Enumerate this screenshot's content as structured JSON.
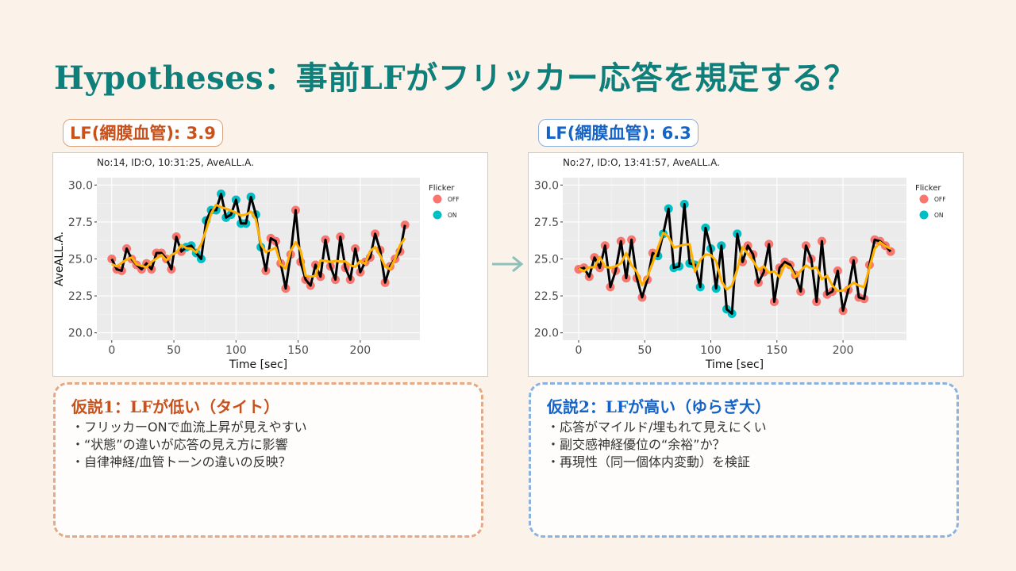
{
  "slide": {
    "title": "Hypotheses：事前LFがフリッカー応答を規定する？"
  },
  "colors": {
    "title": "#0f7f7c",
    "off": "#f8766d",
    "on": "#00bfc4",
    "raw_line": "#000000",
    "smooth_line": "#ffb000",
    "hyp1": "#c8501a",
    "hyp2": "#1463c8"
  },
  "panels": [
    {
      "badge": "LF(網膜血管): 3.9",
      "hypothesis": {
        "heading": "仮説1：LFが低い（タイト）",
        "bullets": [
          "フリッカーONで血流上昇が見えやすい",
          "“状態”の違いが応答の見え方に影響",
          "自律神経/血管トーンの違いの反映？"
        ]
      }
    },
    {
      "badge": "LF(網膜血管): 6.3",
      "hypothesis": {
        "heading": "仮説2：LFが高い（ゆらぎ大）",
        "bullets": [
          "応答がマイルド/埋もれて見えにくい",
          "副交感神経優位の“余裕”か？",
          "再現性（同一個体内変動）を検証"
        ]
      }
    }
  ],
  "chart_data": [
    {
      "type": "line",
      "title": "No:14, ID:O, 10:31:25, AveALL.A.",
      "xlabel": "Time [sec]",
      "ylabel": "AveALL.A.",
      "xticks": [
        "0",
        "50",
        "100",
        "150",
        "200"
      ],
      "yticks": [
        "20.0",
        "22.5",
        "25.0",
        "27.5",
        "30.0"
      ],
      "xlim": [
        -12,
        248
      ],
      "ylim": [
        19.5,
        30.5
      ],
      "grid": true,
      "legend": {
        "title": "Flicker",
        "entries": [
          "OFF",
          "ON"
        ],
        "position": "right"
      },
      "x": [
        0,
        4,
        8,
        12,
        16,
        20,
        24,
        28,
        32,
        36,
        40,
        44,
        48,
        52,
        56,
        60,
        64,
        68,
        72,
        76,
        80,
        84,
        88,
        92,
        96,
        100,
        104,
        108,
        112,
        116,
        120,
        124,
        128,
        132,
        136,
        140,
        144,
        148,
        152,
        156,
        160,
        164,
        168,
        172,
        176,
        180,
        184,
        188,
        192,
        196,
        200,
        204,
        208,
        212,
        216,
        220,
        224,
        228,
        232,
        236
      ],
      "y": [
        25.0,
        24.3,
        24.2,
        25.7,
        25.0,
        24.6,
        24.3,
        24.7,
        24.3,
        25.4,
        25.4,
        25.0,
        24.3,
        26.5,
        25.5,
        25.8,
        25.9,
        25.4,
        25.0,
        27.6,
        28.3,
        28.3,
        29.4,
        27.8,
        28.0,
        29.0,
        27.4,
        27.4,
        29.2,
        28.0,
        25.8,
        24.2,
        26.4,
        26.2,
        24.7,
        23.0,
        25.3,
        28.3,
        24.8,
        23.6,
        23.2,
        24.6,
        23.8,
        26.3,
        24.5,
        23.6,
        26.5,
        24.4,
        23.6,
        25.7,
        24.1,
        24.8,
        25.1,
        26.7,
        25.6,
        23.4,
        24.5,
        25.0,
        25.5,
        27.3
      ],
      "flicker": [
        "OFF",
        "OFF",
        "OFF",
        "OFF",
        "OFF",
        "OFF",
        "OFF",
        "OFF",
        "OFF",
        "OFF",
        "OFF",
        "OFF",
        "OFF",
        "OFF",
        "OFF",
        "ON",
        "ON",
        "ON",
        "ON",
        "ON",
        "ON",
        "ON",
        "ON",
        "ON",
        "ON",
        "ON",
        "ON",
        "ON",
        "ON",
        "ON",
        "ON",
        "OFF",
        "OFF",
        "OFF",
        "OFF",
        "OFF",
        "OFF",
        "OFF",
        "OFF",
        "OFF",
        "OFF",
        "OFF",
        "OFF",
        "OFF",
        "OFF",
        "OFF",
        "OFF",
        "OFF",
        "OFF",
        "OFF",
        "OFF",
        "OFF",
        "OFF",
        "OFF",
        "OFF",
        "OFF",
        "OFF",
        "OFF",
        "OFF",
        "OFF"
      ]
    },
    {
      "type": "line",
      "title": "No:27, ID:O, 13:41:57, AveALL.A.",
      "xlabel": "Time [sec]",
      "ylabel": "",
      "xticks": [
        "0",
        "50",
        "100",
        "150",
        "200"
      ],
      "yticks": [
        "20.0",
        "22.5",
        "25.0",
        "27.5",
        "30.0"
      ],
      "xlim": [
        -12,
        248
      ],
      "ylim": [
        19.5,
        30.5
      ],
      "grid": true,
      "legend": {
        "title": "Flicker",
        "entries": [
          "OFF",
          "ON"
        ],
        "position": "right"
      },
      "x": [
        0,
        4,
        8,
        12,
        16,
        20,
        24,
        28,
        32,
        36,
        40,
        44,
        48,
        52,
        56,
        60,
        64,
        68,
        72,
        76,
        80,
        84,
        88,
        92,
        96,
        100,
        104,
        108,
        112,
        116,
        120,
        124,
        128,
        132,
        136,
        140,
        144,
        148,
        152,
        156,
        160,
        164,
        168,
        172,
        176,
        180,
        184,
        188,
        192,
        196,
        200,
        204,
        208,
        212,
        216,
        220,
        224,
        228,
        232,
        236
      ],
      "y": [
        24.3,
        24.4,
        23.8,
        25.1,
        24.4,
        25.9,
        23.1,
        24.2,
        26.2,
        23.7,
        26.3,
        23.7,
        22.4,
        23.6,
        25.4,
        25.2,
        26.7,
        28.4,
        24.4,
        24.5,
        28.7,
        24.7,
        24.6,
        23.1,
        27.1,
        25.7,
        23.0,
        25.9,
        21.6,
        21.3,
        26.7,
        24.8,
        25.9,
        25.3,
        23.4,
        24.1,
        26.0,
        22.1,
        24.4,
        24.8,
        24.6,
        23.9,
        22.8,
        25.9,
        25.0,
        22.1,
        26.2,
        22.6,
        22.8,
        24.2,
        21.5,
        22.9,
        24.9,
        22.4,
        22.3,
        24.6,
        26.3,
        26.2,
        25.9,
        25.5
      ],
      "flicker": [
        "OFF",
        "OFF",
        "OFF",
        "OFF",
        "OFF",
        "OFF",
        "OFF",
        "OFF",
        "OFF",
        "OFF",
        "OFF",
        "OFF",
        "OFF",
        "OFF",
        "OFF",
        "ON",
        "ON",
        "ON",
        "ON",
        "ON",
        "ON",
        "ON",
        "ON",
        "ON",
        "ON",
        "ON",
        "ON",
        "ON",
        "ON",
        "ON",
        "ON",
        "OFF",
        "OFF",
        "OFF",
        "OFF",
        "OFF",
        "OFF",
        "OFF",
        "OFF",
        "OFF",
        "OFF",
        "OFF",
        "OFF",
        "OFF",
        "OFF",
        "OFF",
        "OFF",
        "OFF",
        "OFF",
        "OFF",
        "OFF",
        "OFF",
        "OFF",
        "OFF",
        "OFF",
        "OFF",
        "OFF",
        "OFF",
        "OFF",
        "OFF"
      ]
    }
  ]
}
